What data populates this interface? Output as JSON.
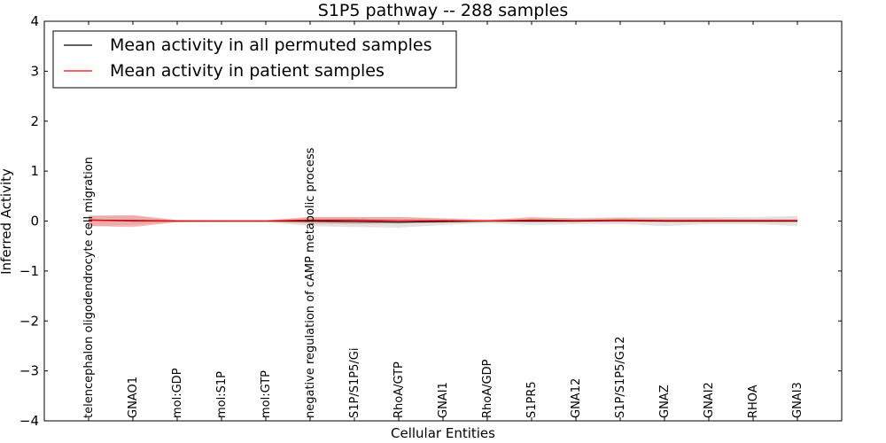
{
  "chart_data": {
    "type": "line",
    "title": "S1P5 pathway -- 288 samples",
    "xlabel": "Cellular Entities",
    "ylabel": "Inferred Activity",
    "ylim": [
      -4,
      4
    ],
    "yticks": [
      -4,
      -3,
      -2,
      -1,
      0,
      1,
      2,
      3,
      4
    ],
    "ytick_labels": [
      "−4",
      "−3",
      "−2",
      "−1",
      "0",
      "1",
      "2",
      "3",
      "4"
    ],
    "legend_position": "top-left",
    "categories": [
      "telencephalon oligodendrocyte cell migration",
      "GNAO1",
      "mol:GDP",
      "mol:S1P",
      "mol:GTP",
      "negative regulation of cAMP metabolic process",
      "S1P/S1P5/Gi",
      "RhoA/GTP",
      "GNAI1",
      "RhoA/GDP",
      "S1PR5",
      "GNA12",
      "S1P/S1P5/G12",
      "GNAZ",
      "GNAI2",
      "RHOA",
      "GNAI3"
    ],
    "series": [
      {
        "name": "Mean activity in all permuted samples",
        "color": "#000000",
        "values": [
          0.02,
          0.01,
          0.0,
          0.0,
          0.0,
          0.0,
          -0.01,
          -0.02,
          -0.01,
          0.0,
          0.0,
          0.0,
          0.01,
          0.0,
          0.0,
          0.0,
          0.0
        ],
        "band_lower": [
          -0.1,
          -0.08,
          -0.02,
          -0.02,
          -0.02,
          -0.1,
          -0.12,
          -0.13,
          -0.08,
          -0.04,
          -0.08,
          -0.06,
          -0.06,
          -0.1,
          -0.06,
          -0.06,
          -0.1
        ],
        "band_upper": [
          0.12,
          0.1,
          0.02,
          0.02,
          0.02,
          0.08,
          0.08,
          0.08,
          0.06,
          0.04,
          0.06,
          0.06,
          0.08,
          0.08,
          0.08,
          0.08,
          0.1
        ],
        "band_color": "#bfbfbf"
      },
      {
        "name": "Mean activity in patient samples",
        "color": "#ff0000",
        "values": [
          0.02,
          0.0,
          0.0,
          0.0,
          0.0,
          0.02,
          0.02,
          0.01,
          0.01,
          0.0,
          0.02,
          0.01,
          0.02,
          0.01,
          0.01,
          0.01,
          0.01
        ],
        "band_lower": [
          -0.1,
          -0.12,
          -0.02,
          -0.01,
          -0.01,
          -0.05,
          -0.06,
          -0.05,
          -0.03,
          -0.01,
          -0.02,
          -0.02,
          -0.02,
          -0.02,
          -0.02,
          -0.02,
          -0.02
        ],
        "band_upper": [
          0.1,
          0.12,
          0.02,
          0.01,
          0.01,
          0.08,
          0.08,
          0.08,
          0.05,
          0.02,
          0.08,
          0.05,
          0.06,
          0.05,
          0.05,
          0.04,
          0.04
        ],
        "band_color": "#f08080"
      }
    ]
  }
}
